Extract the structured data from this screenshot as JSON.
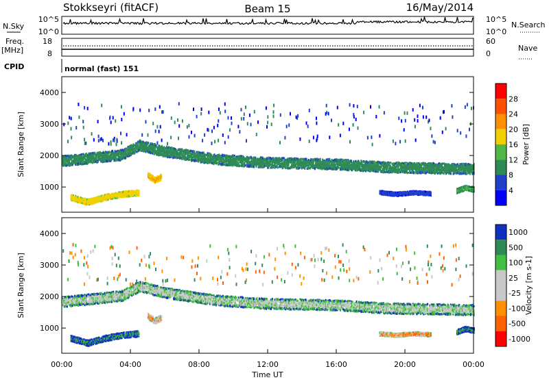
{
  "header": {
    "station": "Stokkseyri (fitACF)",
    "beam": "Beam 15",
    "date": "16/May/2014"
  },
  "top_panels": {
    "nsky_label": "N.Sky",
    "nsky_ticks": [
      "10^5",
      "10^0"
    ],
    "nsearch_label": "N.Search",
    "nsearch_ticks": [
      "10^5",
      "10^0"
    ],
    "freq_label": "Freq.",
    "freq_unit": "[MHz]",
    "freq_ticks": [
      "18",
      "8"
    ],
    "nave_label": "Nave",
    "nave_ticks": [
      "60",
      "0"
    ],
    "cpid_label": "CPID",
    "cpid_text": "normal (fast) 151"
  },
  "colors": {
    "power_scale": [
      "#0000ff",
      "#2040c8",
      "#2e8b57",
      "#4fb848",
      "#f0d000",
      "#ff9000",
      "#ff5000",
      "#ff0000"
    ],
    "velocity_scale": [
      "#1030c0",
      "#2e8b57",
      "#40c040",
      "#c8c8c8",
      "#c8c8c8",
      "#ff9000",
      "#ff6000",
      "#ff0000"
    ]
  },
  "chart_data": [
    {
      "type": "heatmap",
      "name": "power",
      "ylabel": "Slant Range [km]",
      "ylim": [
        200,
        4500
      ],
      "yticks": [
        "1000",
        "2000",
        "3000",
        "4000"
      ],
      "xlim": [
        0,
        24
      ],
      "xticks": [
        "00:00",
        "04:00",
        "08:00",
        "12:00",
        "16:00",
        "20:00",
        "00:00"
      ],
      "colorbar_label": "Power [dB]",
      "colorbar_ticks": [
        "4",
        "8",
        "12",
        "16",
        "20",
        "24",
        "28"
      ],
      "colorbar_range": [
        0,
        32
      ],
      "bands": [
        {
          "t": [
            0,
            3.5,
            4.5,
            6,
            9,
            12,
            16,
            19,
            24
          ],
          "r": [
            1850,
            2050,
            2350,
            2150,
            1900,
            1800,
            1750,
            1650,
            1600
          ],
          "w": 330,
          "level": 10
        },
        {
          "t": [
            0.5,
            1.5,
            2.5,
            3.5,
            4.5
          ],
          "r": [
            700,
            550,
            700,
            800,
            850
          ],
          "w": 180,
          "level": 18
        },
        {
          "t": [
            5,
            5.4,
            5.8
          ],
          "r": [
            1400,
            1250,
            1350
          ],
          "w": 180,
          "level": 20
        },
        {
          "t": [
            18.5,
            19.5,
            20.5,
            21.5
          ],
          "r": [
            850,
            800,
            850,
            820
          ],
          "w": 120,
          "level": 6
        },
        {
          "t": [
            23,
            23.5,
            24
          ],
          "r": [
            900,
            1000,
            950
          ],
          "w": 150,
          "level": 12
        }
      ]
    },
    {
      "type": "heatmap",
      "name": "velocity",
      "xlabel": "Time UT",
      "ylabel": "Slant Range [km]",
      "ylim": [
        200,
        4500
      ],
      "yticks": [
        "1000",
        "2000",
        "3000",
        "4000"
      ],
      "xlim": [
        0,
        24
      ],
      "xticks": [
        "00:00",
        "04:00",
        "08:00",
        "12:00",
        "16:00",
        "20:00",
        "00:00"
      ],
      "colorbar_label": "Velocity [m s-1]",
      "colorbar_ticks": [
        "1000",
        "500",
        "100",
        "25",
        "-25",
        "-100",
        "-500",
        "-1000"
      ],
      "bands": [
        {
          "t": [
            0,
            3.5,
            4.5,
            6,
            9,
            12,
            16,
            19,
            24
          ],
          "r": [
            1850,
            2050,
            2350,
            2150,
            1900,
            1800,
            1750,
            1650,
            1600
          ],
          "w": 330,
          "level": 3
        },
        {
          "t": [
            0.5,
            1.5,
            2.5,
            3.5,
            4.5
          ],
          "r": [
            700,
            550,
            700,
            800,
            850
          ],
          "w": 180,
          "level": 1
        },
        {
          "t": [
            5,
            5.4,
            5.8
          ],
          "r": [
            1400,
            1250,
            1350
          ],
          "w": 180,
          "level": 5
        },
        {
          "t": [
            18.5,
            19.5,
            20.5,
            21.5
          ],
          "r": [
            850,
            800,
            850,
            820
          ],
          "w": 120,
          "level": 5
        },
        {
          "t": [
            23,
            23.5,
            24
          ],
          "r": [
            900,
            1000,
            950
          ],
          "w": 150,
          "level": 1
        }
      ]
    }
  ]
}
